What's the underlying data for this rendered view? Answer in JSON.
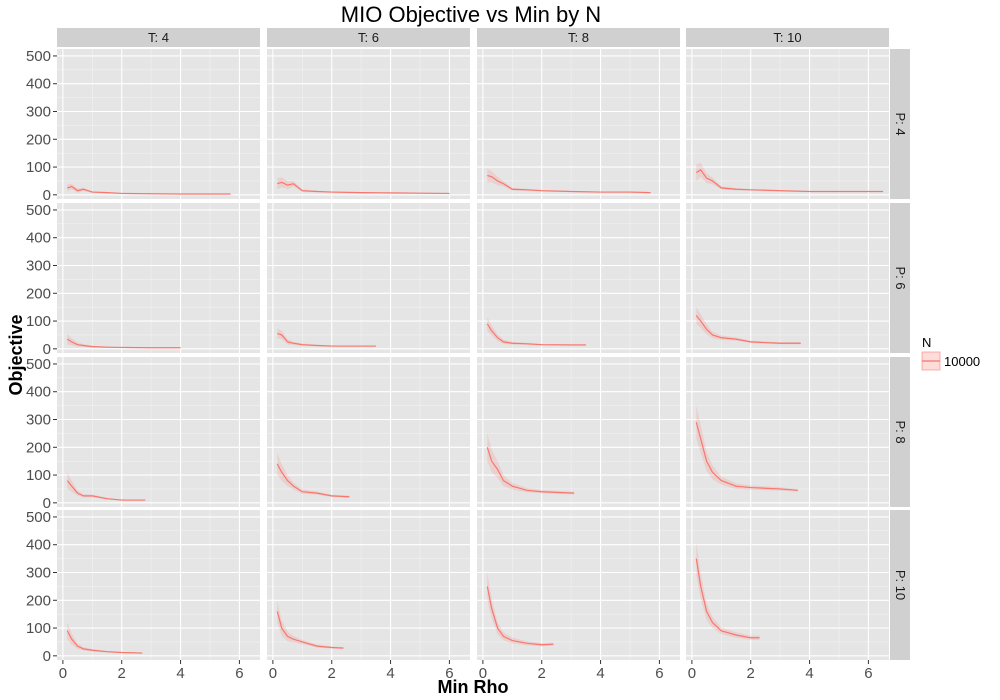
{
  "chart_data": {
    "type": "line",
    "title": "MIO Objective vs Min by N",
    "xlabel": "Min Rho",
    "ylabel": "Objective",
    "xlim": [
      -0.2,
      6.7
    ],
    "ylim": [
      -15,
      525
    ],
    "x_ticks": [
      "0",
      "2",
      "4",
      "6"
    ],
    "x_tick_values": [
      0,
      2,
      4,
      6
    ],
    "y_ticks": [
      "0",
      "100",
      "200",
      "300",
      "400",
      "500"
    ],
    "y_tick_values": [
      0,
      100,
      200,
      300,
      400,
      500
    ],
    "grid": true,
    "facet_cols": [
      "T: 4",
      "T: 6",
      "T: 8",
      "T: 10"
    ],
    "facet_rows": [
      "P: 4",
      "P: 6",
      "P: 8",
      "P: 10"
    ],
    "legend": {
      "title": "N",
      "position": "right",
      "entries": [
        "10000"
      ]
    },
    "series_color": "#f8766d",
    "ribbon_color": "#f8766d",
    "panels": [
      {
        "col": "T: 4",
        "row": "P: 4",
        "name": "10000",
        "x": [
          0.15,
          0.3,
          0.5,
          0.7,
          1,
          1.5,
          2,
          3,
          4,
          5,
          5.7
        ],
        "y": [
          25,
          30,
          15,
          20,
          10,
          8,
          5,
          4,
          3,
          3,
          3
        ],
        "band": [
          12,
          10,
          8,
          6,
          3,
          2,
          1,
          1,
          1,
          1,
          1
        ]
      },
      {
        "col": "T: 6",
        "row": "P: 4",
        "name": "10000",
        "x": [
          0.15,
          0.3,
          0.5,
          0.7,
          1,
          1.5,
          2,
          3,
          4,
          5,
          6
        ],
        "y": [
          40,
          45,
          35,
          40,
          15,
          12,
          10,
          8,
          7,
          6,
          5
        ],
        "band": [
          20,
          18,
          14,
          10,
          5,
          3,
          2,
          2,
          1,
          1,
          1
        ]
      },
      {
        "col": "T: 8",
        "row": "P: 4",
        "name": "10000",
        "x": [
          0.15,
          0.3,
          0.5,
          0.7,
          1,
          1.5,
          2,
          3,
          4,
          5,
          5.7
        ],
        "y": [
          70,
          65,
          50,
          40,
          20,
          18,
          15,
          12,
          10,
          10,
          8
        ],
        "band": [
          25,
          20,
          15,
          10,
          5,
          4,
          3,
          2,
          2,
          2,
          2
        ]
      },
      {
        "col": "T: 10",
        "row": "P: 4",
        "name": "10000",
        "x": [
          0.15,
          0.3,
          0.5,
          0.7,
          1,
          1.5,
          2,
          3,
          4,
          5,
          6.5
        ],
        "y": [
          80,
          90,
          60,
          50,
          25,
          20,
          18,
          15,
          12,
          12,
          12
        ],
        "band": [
          30,
          25,
          18,
          12,
          6,
          4,
          3,
          3,
          2,
          2,
          2
        ]
      },
      {
        "col": "T: 4",
        "row": "P: 6",
        "name": "10000",
        "x": [
          0.15,
          0.3,
          0.5,
          0.7,
          1,
          1.5,
          2,
          3,
          4
        ],
        "y": [
          35,
          25,
          15,
          12,
          8,
          6,
          5,
          4,
          4
        ],
        "band": [
          20,
          12,
          8,
          5,
          3,
          2,
          1,
          1,
          1
        ]
      },
      {
        "col": "T: 6",
        "row": "P: 6",
        "name": "10000",
        "x": [
          0.15,
          0.3,
          0.5,
          0.7,
          1,
          1.5,
          2,
          3,
          3.5
        ],
        "y": [
          55,
          50,
          25,
          20,
          15,
          12,
          10,
          10,
          10
        ],
        "band": [
          18,
          15,
          10,
          6,
          4,
          3,
          2,
          2,
          2
        ]
      },
      {
        "col": "T: 8",
        "row": "P: 6",
        "name": "10000",
        "x": [
          0.15,
          0.3,
          0.5,
          0.7,
          1,
          1.5,
          2,
          3,
          3.5
        ],
        "y": [
          90,
          65,
          40,
          25,
          20,
          18,
          15,
          14,
          14
        ],
        "band": [
          25,
          18,
          12,
          8,
          5,
          4,
          3,
          3,
          3
        ]
      },
      {
        "col": "T: 10",
        "row": "P: 6",
        "name": "10000",
        "x": [
          0.15,
          0.3,
          0.5,
          0.7,
          1,
          1.5,
          2,
          3,
          3.7
        ],
        "y": [
          120,
          100,
          70,
          50,
          40,
          35,
          25,
          20,
          20
        ],
        "band": [
          30,
          25,
          18,
          12,
          8,
          6,
          4,
          4,
          4
        ]
      },
      {
        "col": "T: 4",
        "row": "P: 8",
        "name": "10000",
        "x": [
          0.15,
          0.3,
          0.5,
          0.7,
          1,
          1.5,
          2,
          2.8
        ],
        "y": [
          80,
          60,
          35,
          25,
          25,
          15,
          10,
          10
        ],
        "band": [
          30,
          20,
          10,
          6,
          5,
          3,
          2,
          2
        ]
      },
      {
        "col": "T: 6",
        "row": "P: 8",
        "name": "10000",
        "x": [
          0.15,
          0.3,
          0.5,
          0.7,
          1,
          1.5,
          2,
          2.6
        ],
        "y": [
          140,
          110,
          80,
          60,
          40,
          35,
          25,
          22
        ],
        "band": [
          40,
          30,
          20,
          12,
          8,
          6,
          4,
          4
        ]
      },
      {
        "col": "T: 8",
        "row": "P: 8",
        "name": "10000",
        "x": [
          0.15,
          0.3,
          0.5,
          0.7,
          1,
          1.5,
          2,
          3.1
        ],
        "y": [
          200,
          150,
          120,
          80,
          60,
          45,
          40,
          35
        ],
        "band": [
          50,
          40,
          30,
          20,
          12,
          8,
          6,
          5
        ]
      },
      {
        "col": "T: 10",
        "row": "P: 8",
        "name": "10000",
        "x": [
          0.15,
          0.3,
          0.5,
          0.7,
          1,
          1.5,
          2,
          3,
          3.6
        ],
        "y": [
          290,
          230,
          150,
          110,
          80,
          60,
          55,
          50,
          45
        ],
        "band": [
          60,
          50,
          35,
          25,
          15,
          10,
          8,
          6,
          5
        ]
      },
      {
        "col": "T: 4",
        "row": "P: 10",
        "name": "10000",
        "x": [
          0.15,
          0.3,
          0.5,
          0.7,
          1,
          1.5,
          2,
          2.7
        ],
        "y": [
          90,
          60,
          35,
          25,
          20,
          15,
          12,
          10
        ],
        "band": [
          30,
          20,
          10,
          6,
          5,
          3,
          2,
          2
        ]
      },
      {
        "col": "T: 6",
        "row": "P: 10",
        "name": "10000",
        "x": [
          0.15,
          0.3,
          0.5,
          0.7,
          1,
          1.5,
          2,
          2.4
        ],
        "y": [
          160,
          100,
          70,
          60,
          50,
          35,
          30,
          28
        ],
        "band": [
          40,
          28,
          18,
          12,
          8,
          6,
          4,
          4
        ]
      },
      {
        "col": "T: 8",
        "row": "P: 10",
        "name": "10000",
        "x": [
          0.15,
          0.3,
          0.5,
          0.7,
          1,
          1.5,
          2,
          2.4
        ],
        "y": [
          250,
          170,
          100,
          70,
          55,
          45,
          40,
          42
        ],
        "band": [
          50,
          35,
          22,
          15,
          10,
          8,
          6,
          6
        ]
      },
      {
        "col": "T: 10",
        "row": "P: 10",
        "name": "10000",
        "x": [
          0.15,
          0.3,
          0.5,
          0.7,
          1,
          1.5,
          2,
          2.3
        ],
        "y": [
          350,
          250,
          160,
          120,
          90,
          75,
          65,
          65
        ],
        "band": [
          60,
          45,
          30,
          20,
          12,
          10,
          8,
          8
        ]
      }
    ]
  }
}
